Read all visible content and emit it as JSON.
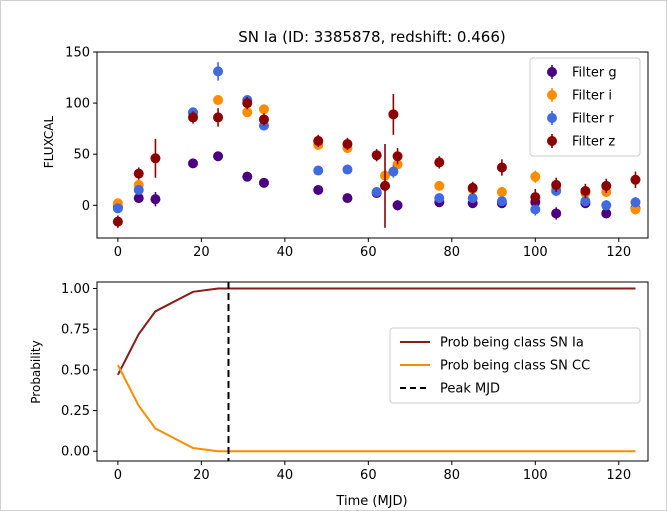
{
  "title": "SN Ia (ID: 3385878, redshift: 0.466)",
  "chart_data": [
    {
      "type": "scatter",
      "title": "SN Ia (ID: 3385878, redshift: 0.466)",
      "xlabel": "",
      "ylabel": "FLUXCAL",
      "xlim": [
        -5,
        127
      ],
      "ylim": [
        -32,
        150
      ],
      "xticks": [
        0,
        20,
        40,
        60,
        80,
        100,
        120
      ],
      "yticks": [
        0,
        50,
        100,
        150
      ],
      "legend_position": "upper right",
      "series": [
        {
          "name": "Filter g",
          "color": "#4b0082",
          "points": [
            {
              "x": 0,
              "y": -2,
              "err": 4
            },
            {
              "x": 5,
              "y": 7,
              "err": 4
            },
            {
              "x": 9,
              "y": 6,
              "err": 7
            },
            {
              "x": 18,
              "y": 41,
              "err": 3
            },
            {
              "x": 24,
              "y": 48,
              "err": 3
            },
            {
              "x": 31,
              "y": 28,
              "err": 3
            },
            {
              "x": 35,
              "y": 22,
              "err": 3
            },
            {
              "x": 48,
              "y": 15,
              "err": 3
            },
            {
              "x": 55,
              "y": 7,
              "err": 3
            },
            {
              "x": 62,
              "y": 12,
              "err": 3
            },
            {
              "x": 67,
              "y": 0,
              "err": 5
            },
            {
              "x": 77,
              "y": 3,
              "err": 3
            },
            {
              "x": 85,
              "y": 2,
              "err": 3
            },
            {
              "x": 92,
              "y": 2,
              "err": 3
            },
            {
              "x": 100,
              "y": 3,
              "err": 4
            },
            {
              "x": 105,
              "y": -8,
              "err": 6
            },
            {
              "x": 112,
              "y": 2,
              "err": 4
            },
            {
              "x": 117,
              "y": -8,
              "err": 4
            },
            {
              "x": 124,
              "y": -3,
              "err": 5
            }
          ]
        },
        {
          "name": "Filter i",
          "color": "#ff8c00",
          "points": [
            {
              "x": 0,
              "y": 2,
              "err": 4
            },
            {
              "x": 5,
              "y": 20,
              "err": 4
            },
            {
              "x": 18,
              "y": 90,
              "err": 4
            },
            {
              "x": 24,
              "y": 103,
              "err": 4
            },
            {
              "x": 31,
              "y": 91,
              "err": 4
            },
            {
              "x": 35,
              "y": 94,
              "err": 4
            },
            {
              "x": 48,
              "y": 59,
              "err": 4
            },
            {
              "x": 55,
              "y": 56,
              "err": 4
            },
            {
              "x": 64,
              "y": 29,
              "err": 5
            },
            {
              "x": 67,
              "y": 40,
              "err": 4
            },
            {
              "x": 77,
              "y": 19,
              "err": 4
            },
            {
              "x": 85,
              "y": 16,
              "err": 4
            },
            {
              "x": 92,
              "y": 13,
              "err": 5
            },
            {
              "x": 100,
              "y": 28,
              "err": 6
            },
            {
              "x": 105,
              "y": 16,
              "err": 5
            },
            {
              "x": 112,
              "y": 12,
              "err": 5
            },
            {
              "x": 117,
              "y": 13,
              "err": 5
            },
            {
              "x": 124,
              "y": -4,
              "err": 5
            }
          ]
        },
        {
          "name": "Filter r",
          "color": "#4169e1",
          "points": [
            {
              "x": 0,
              "y": -3,
              "err": 4
            },
            {
              "x": 5,
              "y": 15,
              "err": 4
            },
            {
              "x": 18,
              "y": 91,
              "err": 4
            },
            {
              "x": 24,
              "y": 131,
              "err": 9
            },
            {
              "x": 31,
              "y": 103,
              "err": 4
            },
            {
              "x": 35,
              "y": 78,
              "err": 4
            },
            {
              "x": 48,
              "y": 34,
              "err": 4
            },
            {
              "x": 55,
              "y": 35,
              "err": 4
            },
            {
              "x": 62,
              "y": 13,
              "err": 4
            },
            {
              "x": 66,
              "y": 33,
              "err": 6
            },
            {
              "x": 77,
              "y": 7,
              "err": 4
            },
            {
              "x": 85,
              "y": 7,
              "err": 4
            },
            {
              "x": 92,
              "y": 4,
              "err": 4
            },
            {
              "x": 100,
              "y": -4,
              "err": 6
            },
            {
              "x": 105,
              "y": 14,
              "err": 5
            },
            {
              "x": 112,
              "y": 4,
              "err": 5
            },
            {
              "x": 117,
              "y": 0,
              "err": 5
            },
            {
              "x": 124,
              "y": 3,
              "err": 5
            }
          ]
        },
        {
          "name": "Filter z",
          "color": "#8b0000",
          "points": [
            {
              "x": 0,
              "y": -16,
              "err": 6
            },
            {
              "x": 5,
              "y": 31,
              "err": 6
            },
            {
              "x": 9,
              "y": 46,
              "err": 19
            },
            {
              "x": 18,
              "y": 86,
              "err": 6
            },
            {
              "x": 24,
              "y": 86,
              "err": 9
            },
            {
              "x": 31,
              "y": 100,
              "err": 6
            },
            {
              "x": 35,
              "y": 84,
              "err": 6
            },
            {
              "x": 48,
              "y": 63,
              "err": 6
            },
            {
              "x": 55,
              "y": 60,
              "err": 6
            },
            {
              "x": 62,
              "y": 49,
              "err": 6
            },
            {
              "x": 64,
              "y": 19,
              "err": 41
            },
            {
              "x": 66,
              "y": 89,
              "err": 20
            },
            {
              "x": 67,
              "y": 48,
              "err": 8
            },
            {
              "x": 77,
              "y": 42,
              "err": 6
            },
            {
              "x": 85,
              "y": 17,
              "err": 6
            },
            {
              "x": 92,
              "y": 37,
              "err": 8
            },
            {
              "x": 100,
              "y": 8,
              "err": 8
            },
            {
              "x": 105,
              "y": 20,
              "err": 7
            },
            {
              "x": 112,
              "y": 14,
              "err": 7
            },
            {
              "x": 117,
              "y": 19,
              "err": 7
            },
            {
              "x": 124,
              "y": 25,
              "err": 8
            }
          ]
        }
      ]
    },
    {
      "type": "line",
      "title": "",
      "xlabel": "Time (MJD)",
      "ylabel": "Probability",
      "xlim": [
        -5,
        127
      ],
      "ylim": [
        -0.06,
        1.04
      ],
      "xticks": [
        0,
        20,
        40,
        60,
        80,
        100,
        120
      ],
      "yticks": [
        "0.00",
        "0.25",
        "0.50",
        "0.75",
        "1.00"
      ],
      "legend_position": "center right",
      "series": [
        {
          "name": "Prob being class SN Ia",
          "color": "#8b1a1a",
          "style": "solid",
          "x": [
            0,
            5,
            9,
            18,
            24,
            31,
            35,
            48,
            55,
            62,
            66,
            77,
            85,
            92,
            100,
            105,
            112,
            117,
            124
          ],
          "y": [
            0.47,
            0.72,
            0.86,
            0.98,
            1.0,
            1.0,
            1.0,
            1.0,
            1.0,
            1.0,
            1.0,
            1.0,
            1.0,
            1.0,
            1.0,
            1.0,
            1.0,
            1.0,
            1.0
          ]
        },
        {
          "name": "Prob being class SN CC",
          "color": "#ff8c00",
          "style": "solid",
          "x": [
            0,
            5,
            9,
            18,
            24,
            31,
            35,
            48,
            55,
            62,
            66,
            77,
            85,
            92,
            100,
            105,
            112,
            117,
            124
          ],
          "y": [
            0.53,
            0.28,
            0.14,
            0.02,
            0.0,
            0.0,
            0.0,
            0.0,
            0.0,
            0.0,
            0.0,
            0.0,
            0.0,
            0.0,
            0.0,
            0.0,
            0.0,
            0.0,
            0.0
          ]
        },
        {
          "name": "Peak MJD",
          "color": "#000000",
          "style": "dashed",
          "vline_x": 26.5
        }
      ]
    }
  ]
}
